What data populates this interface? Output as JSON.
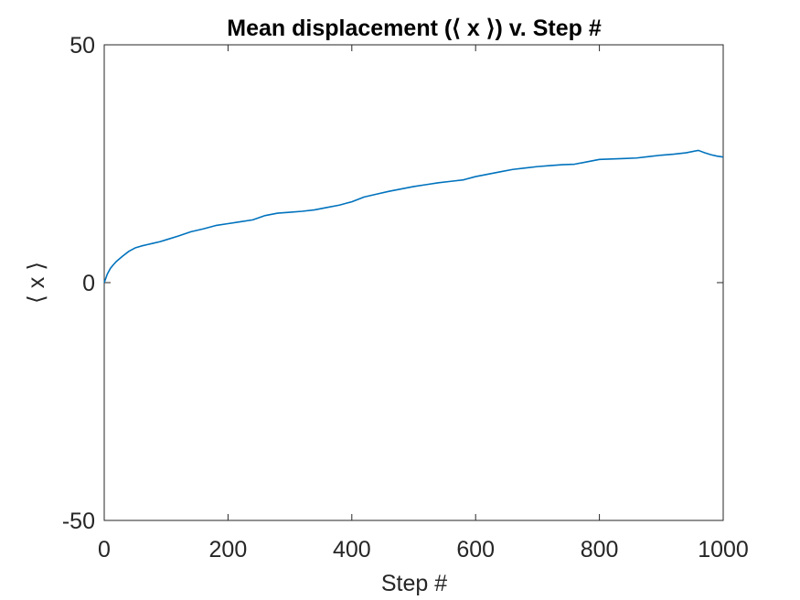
{
  "chart_data": {
    "type": "line",
    "title": "Mean displacement (⟨ x ⟩) v. Step #",
    "xlabel": "Step #",
    "ylabel": "⟨ x ⟩",
    "xlim": [
      0,
      1000
    ],
    "ylim": [
      -50,
      50
    ],
    "xticks": [
      0,
      200,
      400,
      600,
      800,
      1000
    ],
    "xtick_labels": [
      "0",
      "200",
      "400",
      "600",
      "800",
      "1000"
    ],
    "yticks": [
      -50,
      0,
      50
    ],
    "ytick_labels": [
      "-50",
      "0",
      "50"
    ],
    "grid": false,
    "series": [
      {
        "color": "#0072BD",
        "x": [
          0,
          5,
          10,
          15,
          20,
          30,
          40,
          50,
          60,
          70,
          80,
          90,
          100,
          120,
          140,
          160,
          180,
          200,
          220,
          240,
          260,
          280,
          300,
          320,
          340,
          360,
          380,
          400,
          420,
          440,
          460,
          480,
          500,
          520,
          540,
          560,
          580,
          600,
          620,
          640,
          660,
          680,
          700,
          720,
          740,
          760,
          780,
          800,
          820,
          840,
          860,
          880,
          900,
          920,
          940,
          960,
          970,
          980,
          990,
          1000
        ],
        "y": [
          0,
          1.8,
          3.0,
          3.8,
          4.5,
          5.6,
          6.6,
          7.3,
          7.7,
          8.0,
          8.3,
          8.6,
          9.0,
          9.8,
          10.7,
          11.3,
          12.0,
          12.4,
          12.8,
          13.2,
          14.1,
          14.6,
          14.8,
          15.0,
          15.3,
          15.8,
          16.3,
          17.0,
          18.0,
          18.6,
          19.2,
          19.7,
          20.2,
          20.6,
          21.0,
          21.3,
          21.6,
          22.3,
          22.8,
          23.3,
          23.8,
          24.1,
          24.4,
          24.6,
          24.8,
          24.9,
          25.4,
          25.9,
          26.0,
          26.1,
          26.2,
          26.5,
          26.8,
          27.0,
          27.3,
          27.8,
          27.3,
          26.9,
          26.6,
          26.4
        ]
      }
    ]
  }
}
